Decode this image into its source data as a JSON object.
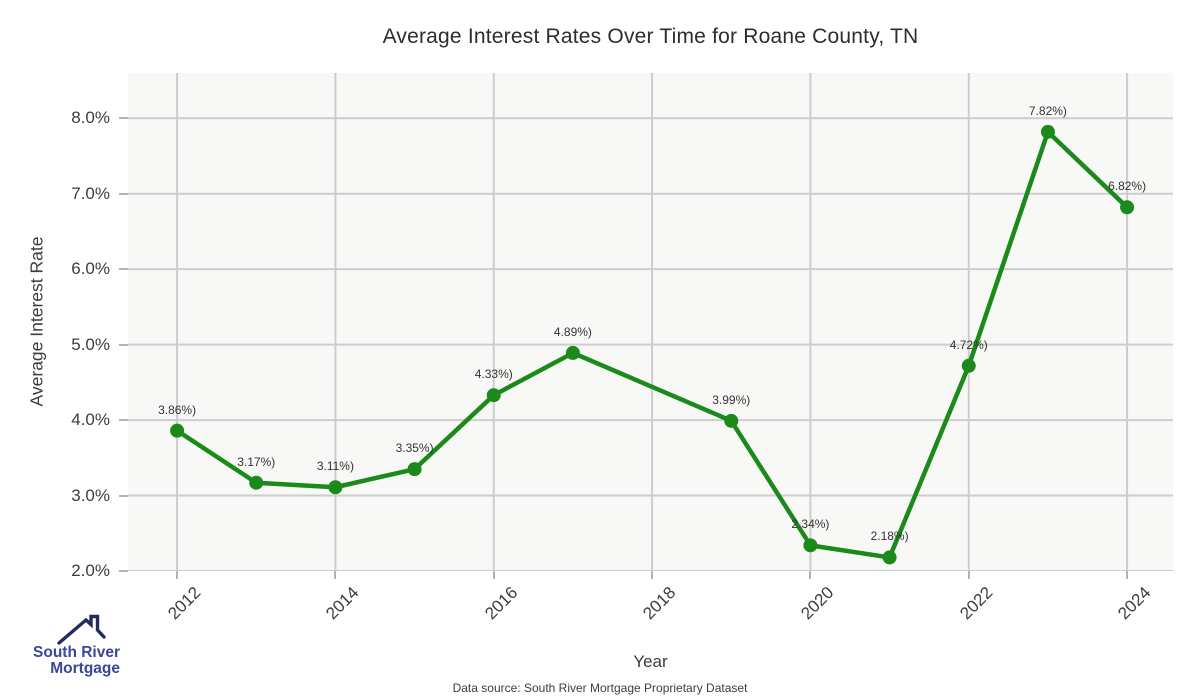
{
  "title": "Average Interest Rates Over Time for Roane County, TN",
  "axes": {
    "xlabel": "Year",
    "ylabel": "Average Interest Rate"
  },
  "footer": {
    "source": "Data source: South River Mortgage Proprietary Dataset"
  },
  "logo": {
    "line1": "South River",
    "line2": "Mortgage",
    "icon": "house-roof-with-chimney",
    "text_color": "#3a4696",
    "icon_color": "#232c5c"
  },
  "chart_data": {
    "type": "line",
    "title": "Average Interest Rates Over Time for Roane County, TN",
    "xlabel": "Year",
    "ylabel": "Average Interest Rate",
    "x": [
      2012,
      2013,
      2014,
      2015,
      2016,
      2017,
      2019,
      2020,
      2021,
      2022,
      2023,
      2024
    ],
    "values": [
      3.86,
      3.17,
      3.11,
      3.35,
      4.33,
      4.89,
      3.99,
      2.34,
      2.18,
      4.72,
      7.82,
      6.82
    ],
    "point_labels": [
      "3.86%)",
      "3.17%)",
      "3.11%)",
      "3.35%)",
      "4.33%)",
      "4.89%)",
      "3.99%)",
      "2.34%)",
      "2.18%)",
      "4.72%)",
      "7.82%)",
      "6.82%)"
    ],
    "x_tick_years": [
      2012,
      2014,
      2016,
      2018,
      2020,
      2022,
      2024
    ],
    "x_tick_labels": [
      "2012",
      "2014",
      "2016",
      "2018",
      "2020",
      "2022",
      "2024"
    ],
    "y_tick_values": [
      2,
      3,
      4,
      5,
      6,
      7,
      8
    ],
    "y_tick_labels": [
      "2.0%",
      "3.0%",
      "4.0%",
      "5.0%",
      "6.0%",
      "7.0%",
      "8.0%"
    ],
    "xlim": [
      2011.38,
      2024.58
    ],
    "ylim": [
      2.0,
      8.6
    ],
    "grid": true,
    "legend_position": "none",
    "line_color": "#1b8a1b",
    "marker": "circle",
    "marker_radius": 7,
    "line_width": 4.5,
    "panel_bg": "#f8f8f6",
    "grid_color": "#cdcdcd",
    "tick_color": "#b3b3b3"
  }
}
